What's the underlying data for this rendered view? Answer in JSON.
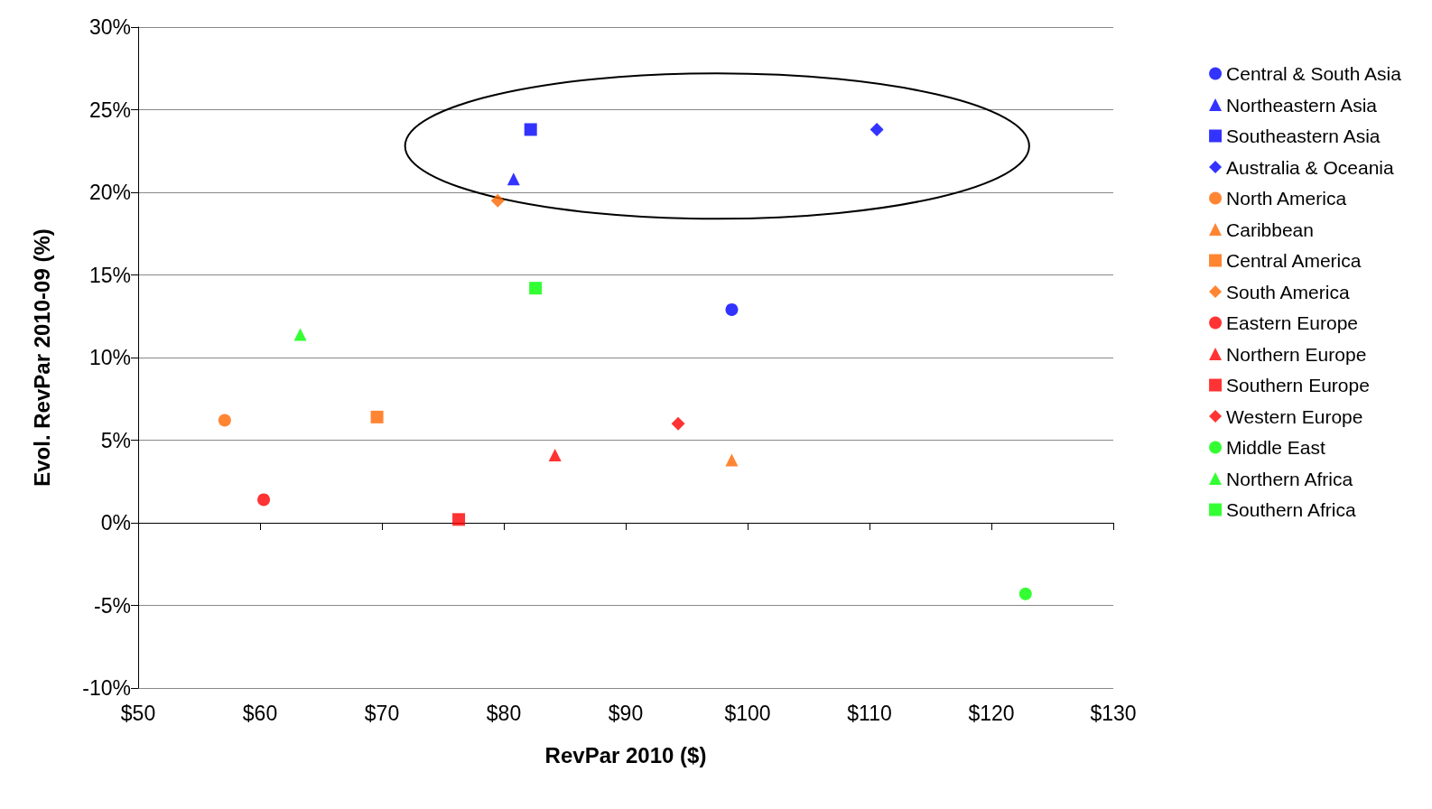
{
  "chart_data": {
    "type": "scatter",
    "xlabel": "RevPar 2010 ($)",
    "ylabel": "Evol. RevPar 2010-09 (%)",
    "xlim": [
      50,
      130
    ],
    "xticks": [
      {
        "value": 50,
        "label": "$50"
      },
      {
        "value": 60,
        "label": "$60"
      },
      {
        "value": 70,
        "label": "$70"
      },
      {
        "value": 80,
        "label": "$80"
      },
      {
        "value": 90,
        "label": "$90"
      },
      {
        "value": 100,
        "label": "$100"
      },
      {
        "value": 110,
        "label": "$110"
      },
      {
        "value": 120,
        "label": "$120"
      },
      {
        "value": 130,
        "label": "$130"
      }
    ],
    "ylim": [
      -10,
      30
    ],
    "yticks": [
      {
        "value": -10,
        "label": "-10%"
      },
      {
        "value": -5,
        "label": "-5%"
      },
      {
        "value": 0,
        "label": "0%"
      },
      {
        "value": 5,
        "label": "5%"
      },
      {
        "value": 10,
        "label": "10%"
      },
      {
        "value": 15,
        "label": "15%"
      },
      {
        "value": 20,
        "label": "20%"
      },
      {
        "value": 25,
        "label": "25%"
      },
      {
        "value": 30,
        "label": "30%"
      }
    ],
    "grid": "y",
    "legend": "right",
    "series": [
      {
        "name": "Central & South Asia",
        "color": "#0000ff",
        "marker": "circle",
        "x": [
          98.7
        ],
        "values": [
          12.9
        ]
      },
      {
        "name": "Northeastern Asia",
        "color": "#0000ff",
        "marker": "triangle",
        "x": [
          80.8
        ],
        "values": [
          20.8
        ]
      },
      {
        "name": "Southeastern Asia",
        "color": "#0000ff",
        "marker": "square",
        "x": [
          82.2
        ],
        "values": [
          23.8
        ]
      },
      {
        "name": "Australia & Oceania",
        "color": "#0000ff",
        "marker": "diamond",
        "x": [
          110.6
        ],
        "values": [
          23.8
        ]
      },
      {
        "name": "North America",
        "color": "#ff6600",
        "marker": "circle",
        "x": [
          57.1
        ],
        "values": [
          6.2
        ]
      },
      {
        "name": "Caribbean",
        "color": "#ff6600",
        "marker": "triangle",
        "x": [
          98.7
        ],
        "values": [
          3.8
        ]
      },
      {
        "name": "Central America",
        "color": "#ff6600",
        "marker": "square",
        "x": [
          69.6
        ],
        "values": [
          6.4
        ]
      },
      {
        "name": "South America",
        "color": "#ff6600",
        "marker": "diamond",
        "x": [
          79.5
        ],
        "values": [
          19.5
        ]
      },
      {
        "name": "Eastern Europe",
        "color": "#ff0000",
        "marker": "circle",
        "x": [
          60.3
        ],
        "values": [
          1.4
        ]
      },
      {
        "name": "Northern Europe",
        "color": "#ff0000",
        "marker": "triangle",
        "x": [
          84.2
        ],
        "values": [
          4.1
        ]
      },
      {
        "name": "Southern Europe",
        "color": "#ff0000",
        "marker": "square",
        "x": [
          76.3
        ],
        "values": [
          0.2
        ]
      },
      {
        "name": "Western Europe",
        "color": "#ff0000",
        "marker": "diamond",
        "x": [
          94.3
        ],
        "values": [
          6.0
        ]
      },
      {
        "name": "Middle East",
        "color": "#00ff00",
        "marker": "circle",
        "x": [
          122.8
        ],
        "values": [
          -4.3
        ]
      },
      {
        "name": "Northern Africa",
        "color": "#00ff00",
        "marker": "triangle",
        "x": [
          63.3
        ],
        "values": [
          11.4
        ]
      },
      {
        "name": "Southern Africa",
        "color": "#00ff00",
        "marker": "square",
        "x": [
          82.6
        ],
        "values": [
          14.2
        ]
      }
    ]
  }
}
